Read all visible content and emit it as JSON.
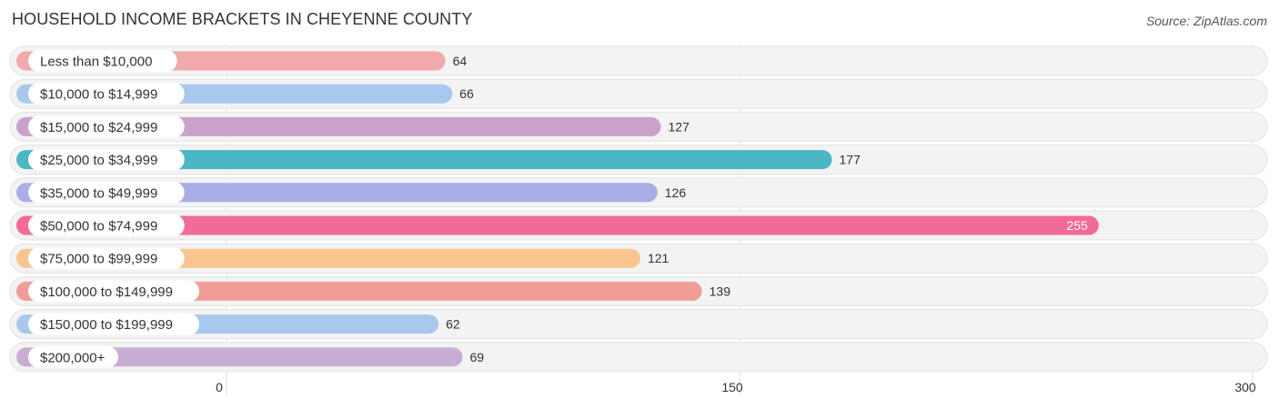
{
  "title": "HOUSEHOLD INCOME BRACKETS IN CHEYENNE COUNTY",
  "source": "Source: ZipAtlas.com",
  "chart_data": {
    "type": "bar",
    "orientation": "horizontal",
    "title": "HOUSEHOLD INCOME BRACKETS IN CHEYENNE COUNTY",
    "xlabel": "",
    "ylabel": "",
    "categories": [
      "Less than $10,000",
      "$10,000 to $14,999",
      "$15,000 to $24,999",
      "$25,000 to $34,999",
      "$35,000 to $49,999",
      "$50,000 to $74,999",
      "$75,000 to $99,999",
      "$100,000 to $149,999",
      "$150,000 to $199,999",
      "$200,000+"
    ],
    "values": [
      64,
      66,
      127,
      177,
      126,
      255,
      121,
      139,
      62,
      69
    ],
    "value_labels": [
      "64",
      "66",
      "127",
      "177",
      "126",
      "255",
      "121",
      "139",
      "62",
      "69"
    ],
    "colors": [
      "#f2a9a9",
      "#a8c8ed",
      "#c9a2c9",
      "#4bb6c4",
      "#a9aee8",
      "#f06b95",
      "#f9c48f",
      "#f09d98",
      "#a8c8ed",
      "#c9aed3"
    ],
    "xlim": [
      0,
      300
    ],
    "xticks": [
      0,
      150,
      300
    ],
    "xtick_labels": [
      "0",
      "150",
      "300"
    ],
    "grid": true
  }
}
